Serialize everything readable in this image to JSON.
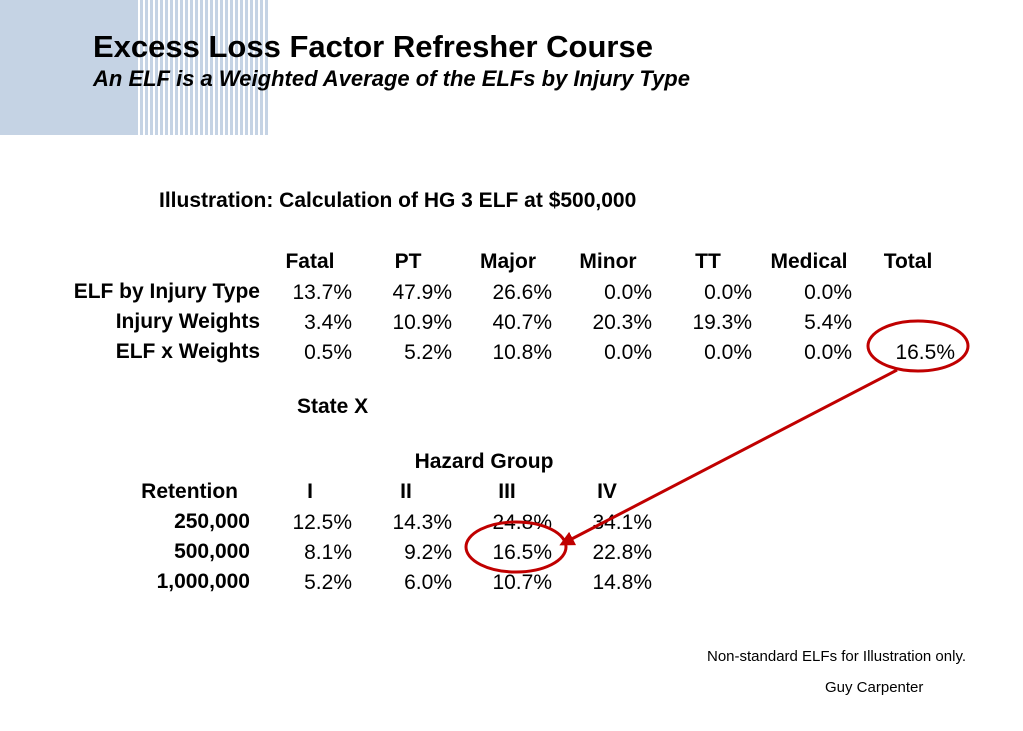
{
  "header": {
    "title": "Excess Loss Factor Refresher Course",
    "subtitle": "An ELF is a Weighted Average of the ELFs by Injury Type"
  },
  "illustration": {
    "heading": "Illustration: Calculation of HG 3 ELF at $500,000",
    "columns": [
      "Fatal",
      "PT",
      "Major",
      "Minor",
      "TT",
      "Medical",
      "Total"
    ],
    "rows": [
      {
        "label": "ELF by Injury Type",
        "values": [
          "13.7%",
          "47.9%",
          "26.6%",
          "0.0%",
          "0.0%",
          "0.0%",
          ""
        ]
      },
      {
        "label": "Injury Weights",
        "values": [
          "3.4%",
          "10.9%",
          "40.7%",
          "20.3%",
          "19.3%",
          "5.4%",
          ""
        ]
      },
      {
        "label": "ELF x Weights",
        "values": [
          "0.5%",
          "5.2%",
          "10.8%",
          "0.0%",
          "0.0%",
          "0.0%",
          "16.5%"
        ]
      }
    ]
  },
  "state_table": {
    "state_label": "State X",
    "group_header": "Hazard Group",
    "retention_header": "Retention",
    "columns": [
      "I",
      "II",
      "III",
      "IV"
    ],
    "rows": [
      {
        "retention": "250,000",
        "values": [
          "12.5%",
          "14.3%",
          "24.8%",
          "34.1%"
        ]
      },
      {
        "retention": "500,000",
        "values": [
          "8.1%",
          "9.2%",
          "16.5%",
          "22.8%"
        ]
      },
      {
        "retention": "1,000,000",
        "values": [
          "5.2%",
          "6.0%",
          "10.7%",
          "14.8%"
        ]
      }
    ]
  },
  "footer": {
    "note": "Non-standard ELFs for Illustration only.",
    "brand": "Guy Carpenter"
  },
  "colors": {
    "accent_red": "#c00000",
    "decor_blue": "#c5d3e4"
  }
}
